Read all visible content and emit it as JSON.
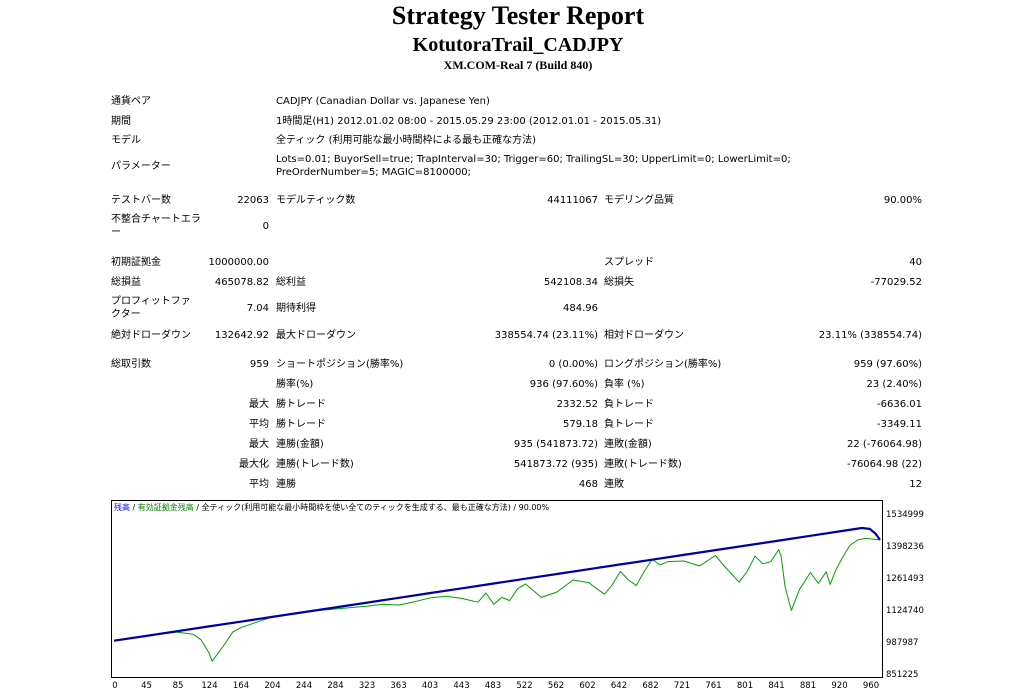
{
  "header": {
    "title": "Strategy Tester Report",
    "ea_name": "KotutoraTrail_CADJPY",
    "server": "XM.COM-Real 7 (Build 840)"
  },
  "info": {
    "symbol_label": "通貨ペア",
    "symbol_value": "CADJPY (Canadian Dollar vs. Japanese Yen)",
    "period_label": "期間",
    "period_value": "1時間足(H1) 2012.01.02 08:00 - 2015.05.29 23:00 (2012.01.01 - 2015.05.31)",
    "model_label": "モデル",
    "model_value": "全ティック (利用可能な最小時間枠による最も正確な方法)",
    "params_label": "パラメーター",
    "params_value": "Lots=0.01; BuyorSell=true; TrapInterval=30; Trigger=60; TrailingSL=30; UpperLimit=0; LowerLimit=0; PreOrderNumber=5; MAGIC=8100000;"
  },
  "stats": {
    "bars_label": "テストバー数",
    "bars_value": "22063",
    "ticks_label": "モデルティック数",
    "ticks_value": "44111067",
    "quality_label": "モデリング品質",
    "quality_value": "90.00%",
    "mismatch_label": "不整合チャートエラー",
    "mismatch_value": "0",
    "deposit_label": "初期証拠金",
    "deposit_value": "1000000.00",
    "spread_label": "スプレッド",
    "spread_value": "40",
    "net_label": "総損益",
    "net_value": "465078.82",
    "gross_profit_label": "総利益",
    "gross_profit_value": "542108.34",
    "gross_loss_label": "総損失",
    "gross_loss_value": "-77029.52",
    "pf_label": "プロフィットファクター",
    "pf_value": "7.04",
    "expected_label": "期待利得",
    "expected_value": "484.96",
    "abs_dd_label": "絶対ドローダウン",
    "abs_dd_value": "132642.92",
    "max_dd_label": "最大ドローダウン",
    "max_dd_value": "338554.74 (23.11%)",
    "rel_dd_label": "相対ドローダウン",
    "rel_dd_value": "23.11% (338554.74)",
    "trades_label": "総取引数",
    "trades_value": "959",
    "short_label": "ショートポジション(勝率%)",
    "short_value": "0 (0.00%)",
    "long_label": "ロングポジション(勝率%)",
    "long_value": "959 (97.60%)",
    "win_pct_label": "勝率(%)",
    "win_pct_value": "936 (97.60%)",
    "loss_pct_label": "負率 (%)",
    "loss_pct_value": "23 (2.40%)",
    "max_prefix": "最大",
    "largest_win_label": "勝トレード",
    "largest_win_value": "2332.52",
    "largest_loss_label": "負トレード",
    "largest_loss_value": "-6636.01",
    "avg_prefix": "平均",
    "avg_win_label": "勝トレード",
    "avg_win_value": "579.18",
    "avg_loss_label": "負トレード",
    "avg_loss_value": "-3349.11",
    "max_prefix2": "最大",
    "cons_wins_label": "連勝(金額)",
    "cons_wins_value": "935 (541873.72)",
    "cons_losses_label": "連敗(金額)",
    "cons_losses_value": "22 (-76064.98)",
    "maximal_prefix": "最大化",
    "cons_profit_label": "連勝(トレード数)",
    "cons_profit_value": "541873.72 (935)",
    "cons_loss_label": "連敗(トレード数)",
    "cons_loss_value": "-76064.98 (22)",
    "avg_prefix2": "平均",
    "avg_cons_wins_label": "連勝",
    "avg_cons_wins_value": "468",
    "avg_cons_losses_label": "連敗",
    "avg_cons_losses_value": "12"
  },
  "chart_data": {
    "type": "line",
    "legend_balance": "残高",
    "legend_sep1": " / ",
    "legend_equity": "有効証拠金残高",
    "legend_rest": " / 全ティック(利用可能な最小時間枠を使い全てのティックを生成する、最も正確な方法) / 90.00%",
    "colors": {
      "balance": "#0000a0",
      "equity": "#00a000",
      "legend_balance": "#0000ff",
      "legend_equity": "#008000"
    },
    "ylim": [
      851225,
      1580000
    ],
    "xlim": [
      0,
      968
    ],
    "yticks": [
      "1534999",
      "1398236",
      "1261493",
      "1124740",
      "987987",
      "851225"
    ],
    "xticks": [
      "0",
      "45",
      "85",
      "124",
      "164",
      "204",
      "244",
      "284",
      "323",
      "363",
      "403",
      "443",
      "483",
      "522",
      "562",
      "602",
      "642",
      "682",
      "721",
      "761",
      "801",
      "841",
      "881",
      "920",
      "960"
    ],
    "series": [
      {
        "name": "残高",
        "x": [
          0,
          40,
          80,
          120,
          160,
          200,
          240,
          280,
          320,
          360,
          400,
          440,
          480,
          520,
          560,
          600,
          640,
          680,
          720,
          760,
          800,
          840,
          880,
          920,
          945,
          955,
          962,
          968
        ],
        "values": [
          1000000,
          1022000,
          1044000,
          1066000,
          1088000,
          1110000,
          1132000,
          1154000,
          1176000,
          1198000,
          1220000,
          1242000,
          1264000,
          1286000,
          1308000,
          1330000,
          1352000,
          1374000,
          1396000,
          1418000,
          1440000,
          1462000,
          1484000,
          1506000,
          1520000,
          1516000,
          1495000,
          1465000
        ]
      },
      {
        "name": "有効証拠金残高",
        "x": [
          0,
          40,
          80,
          100,
          110,
          115,
          120,
          124,
          130,
          140,
          150,
          160,
          180,
          200,
          230,
          260,
          290,
          320,
          340,
          360,
          380,
          400,
          420,
          440,
          460,
          470,
          480,
          490,
          500,
          510,
          520,
          540,
          560,
          580,
          600,
          610,
          620,
          630,
          640,
          650,
          660,
          670,
          680,
          690,
          700,
          720,
          740,
          760,
          770,
          780,
          790,
          800,
          810,
          820,
          830,
          840,
          843,
          848,
          856,
          866,
          880,
          890,
          900,
          905,
          912,
          920,
          930,
          940,
          950,
          968
        ],
        "values": [
          1000000,
          1022000,
          1040000,
          1030000,
          1005000,
          975000,
          945000,
          905000,
          935000,
          985000,
          1040000,
          1060000,
          1085000,
          1110000,
          1125000,
          1140000,
          1150000,
          1160000,
          1168000,
          1165000,
          1180000,
          1198000,
          1205000,
          1195000,
          1178000,
          1220000,
          1168000,
          1200000,
          1185000,
          1240000,
          1262000,
          1200000,
          1225000,
          1280000,
          1268000,
          1240000,
          1215000,
          1260000,
          1320000,
          1280000,
          1255000,
          1320000,
          1375000,
          1350000,
          1365000,
          1368000,
          1345000,
          1393000,
          1350000,
          1310000,
          1270000,
          1320000,
          1390000,
          1355000,
          1365000,
          1420000,
          1390000,
          1250000,
          1140000,
          1235000,
          1315000,
          1265000,
          1318000,
          1260000,
          1325000,
          1380000,
          1440000,
          1465000,
          1472000,
          1465000
        ]
      }
    ]
  }
}
